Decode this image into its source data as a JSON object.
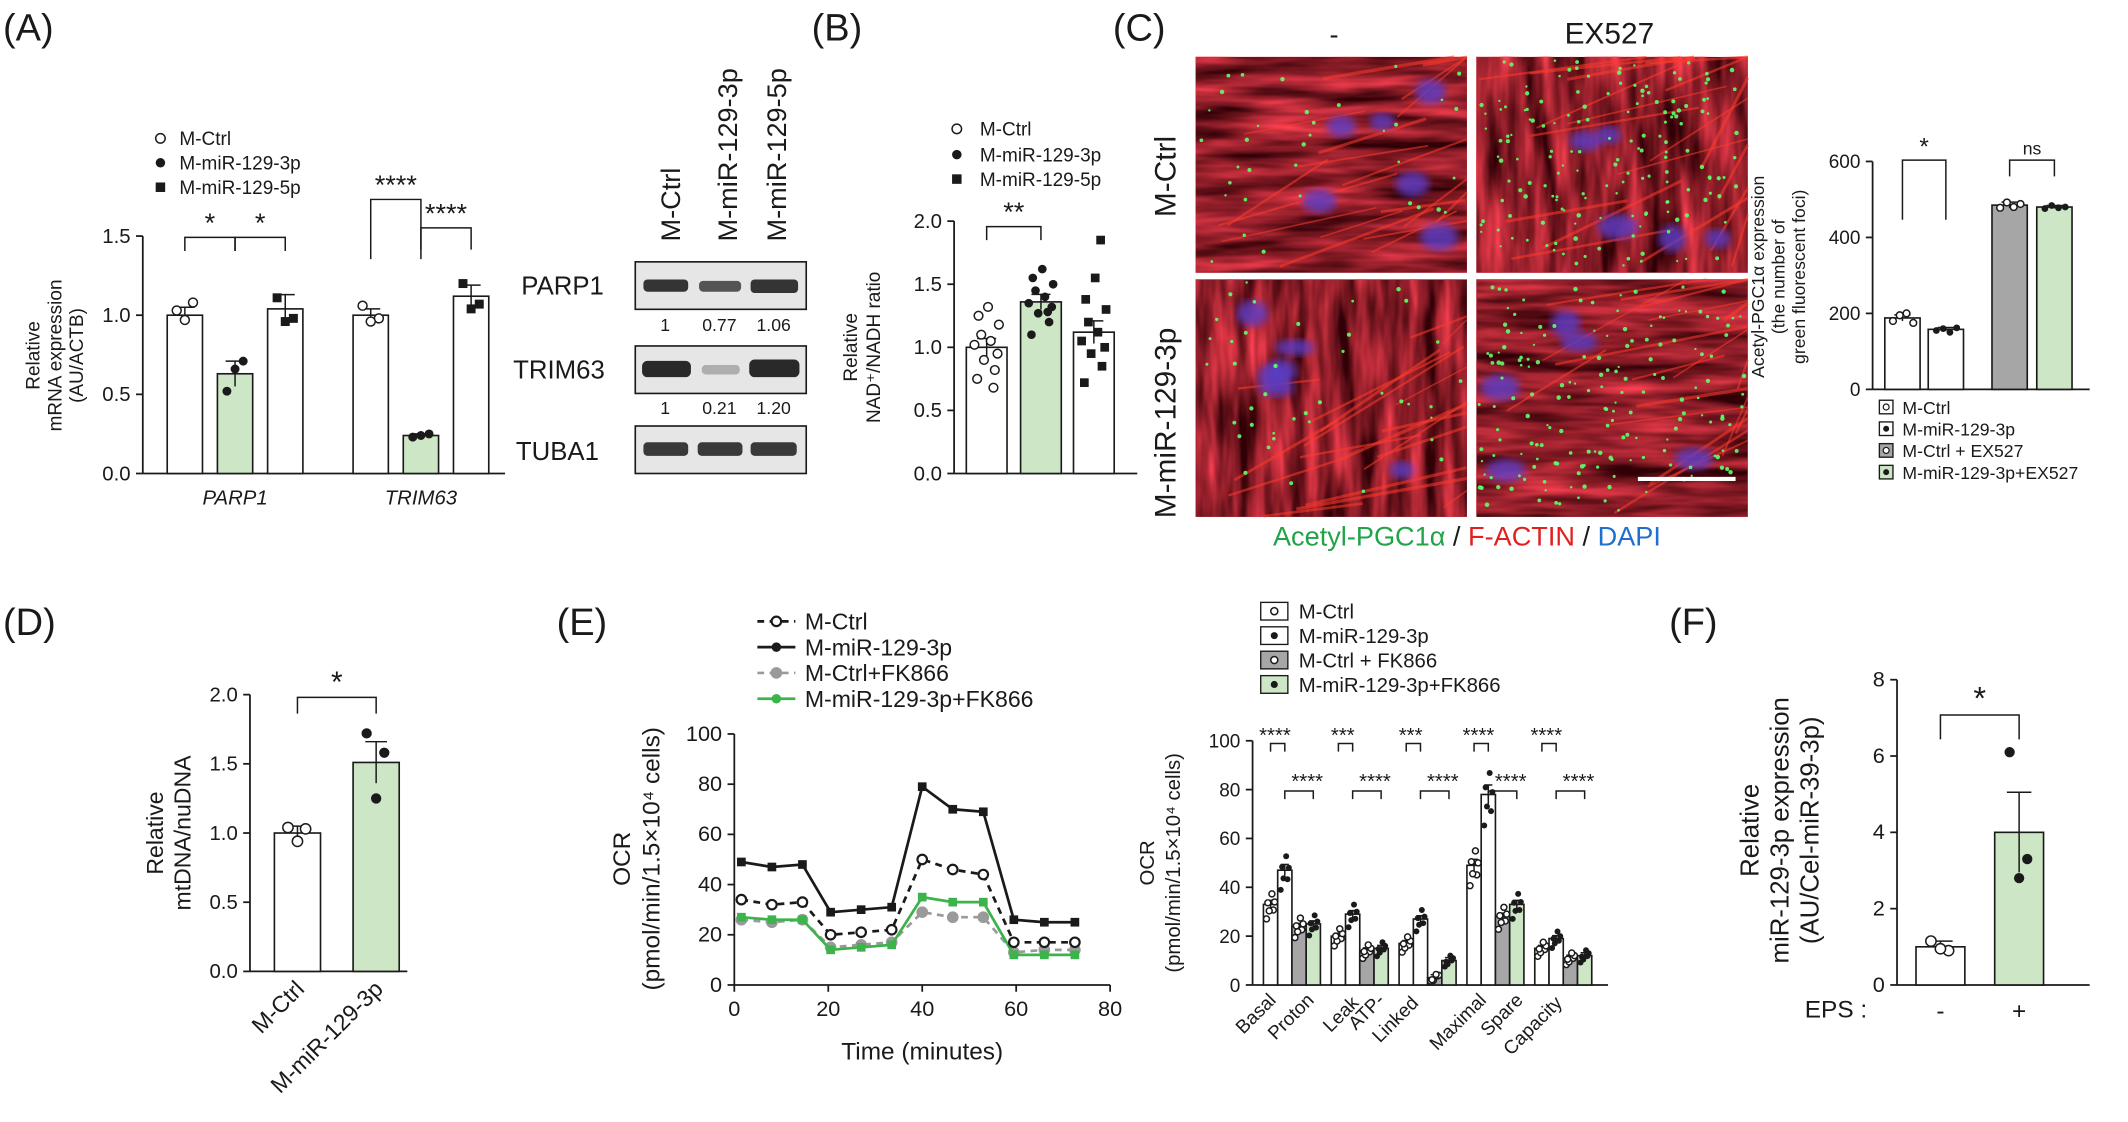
{
  "colors": {
    "bar_ctrl": "#ffffff",
    "bar_green": "#cde7c6",
    "bar_grey": "#a6a6a6",
    "line_green": "#3cb44b",
    "line_grey": "#9a9a9a",
    "line_black": "#1a1a1a",
    "acetyl_green": "#22a348",
    "factin_red": "#e32020",
    "dapi_blue": "#1f6fd1"
  },
  "panels": {
    "A": {
      "label": "(A)",
      "legend": [
        "M-Ctrl",
        "M-miR-129-3p",
        "M-miR-129-5p"
      ],
      "western": {
        "columns": [
          "M-Ctrl",
          "M-miR-129-3p",
          "M-miR-129-5p"
        ],
        "rows": [
          {
            "name": "PARP1",
            "quant": [
              "1",
              "0.77",
              "1.06"
            ]
          },
          {
            "name": "TRIM63",
            "quant": [
              "1",
              "0.21",
              "1.20"
            ]
          },
          {
            "name": "TUBA1",
            "quant": []
          }
        ]
      }
    },
    "B": {
      "label": "(B)",
      "legend": [
        "M-Ctrl",
        "M-miR-129-3p",
        "M-miR-129-5p"
      ]
    },
    "C": {
      "label": "(C)",
      "col_labels": [
        "-",
        "EX527"
      ],
      "row_labels": [
        "M-Ctrl",
        "M-miR-129-3p"
      ],
      "stain": {
        "green": "Acetyl-PGC1α",
        "sep": " / ",
        "red": "F-ACTIN",
        "blue": "DAPI"
      },
      "legend": [
        "M-Ctrl",
        "M-miR-129-3p",
        "M-Ctrl + EX527",
        "M-miR-129-3p+EX527"
      ]
    },
    "D": {
      "label": "(D)"
    },
    "E": {
      "label": "(E)",
      "legend_line": [
        "M-Ctrl",
        "M-miR-129-3p",
        "M-Ctrl+FK866",
        "M-miR-129-3p+FK866"
      ],
      "legend_bar": [
        "M-Ctrl",
        "M-miR-129-3p",
        "M-Ctrl + FK866",
        "M-miR-129-3p+FK866"
      ]
    },
    "F": {
      "label": "(F)",
      "eps_label": "EPS :"
    }
  },
  "chart_data": [
    {
      "id": "A-mrna",
      "type": "bar",
      "ylabel": [
        "Relative",
        "mRNA expression",
        "(AU/ACTB)"
      ],
      "ylim": [
        0,
        1.5
      ],
      "yticks": [
        "0.0",
        "0.5",
        "1.0",
        "1.5"
      ],
      "groups": [
        "PARP1",
        "TRIM63"
      ],
      "series": [
        {
          "name": "M-Ctrl",
          "values": [
            1.0,
            1.0
          ],
          "err": [
            0.05,
            0.04
          ]
        },
        {
          "name": "M-miR-129-3p",
          "values": [
            0.63,
            0.24
          ],
          "err": [
            0.08,
            0.01
          ]
        },
        {
          "name": "M-miR-129-5p",
          "values": [
            1.04,
            1.12
          ],
          "err": [
            0.09,
            0.07
          ]
        }
      ],
      "points": [
        [
          [
            1.03,
            1.08,
            0.97
          ],
          [
            1.06,
            0.98,
            0.96
          ]
        ],
        [
          [
            0.52,
            0.71,
            0.66
          ],
          [
            0.23,
            0.25,
            0.24
          ]
        ],
        [
          [
            1.11,
            0.98,
            0.96
          ],
          [
            1.2,
            1.07,
            1.04
          ]
        ]
      ],
      "sig": [
        "*",
        "*",
        "****",
        "****"
      ]
    },
    {
      "id": "B-nad",
      "type": "bar",
      "ylabel": [
        "Relative",
        "NAD⁺/NADH ratio"
      ],
      "ylim": [
        0,
        2.0
      ],
      "yticks": [
        "0.0",
        "0.5",
        "1.0",
        "1.5",
        "2.0"
      ],
      "categories": [
        "M-Ctrl",
        "M-miR-129-3p",
        "M-miR-129-5p"
      ],
      "values": [
        1.0,
        1.36,
        1.12
      ],
      "err": [
        0.07,
        0.06,
        0.09
      ],
      "points": [
        [
          0.75,
          0.82,
          0.9,
          0.95,
          1.02,
          1.05,
          1.1,
          1.18,
          1.25,
          1.32,
          0.68
        ],
        [
          1.1,
          1.2,
          1.27,
          1.32,
          1.35,
          1.4,
          1.45,
          1.5,
          1.55,
          1.62,
          1.28
        ],
        [
          0.72,
          0.85,
          0.95,
          1.0,
          1.05,
          1.12,
          1.2,
          1.3,
          1.38,
          1.55,
          1.85
        ]
      ],
      "sig": [
        "**"
      ]
    },
    {
      "id": "C-foci",
      "type": "bar",
      "ylabel": [
        "Acetyl-PGC1α expression",
        "(the number of",
        "green fluorescent foci)"
      ],
      "ylim": [
        0,
        600
      ],
      "yticks": [
        "0",
        "200",
        "400",
        "600"
      ],
      "categories": [
        "M-Ctrl",
        "M-miR-129-3p",
        "M-Ctrl + EX527",
        "M-miR-129-3p+EX527"
      ],
      "values": [
        188,
        158,
        485,
        480
      ],
      "err": [
        8,
        5,
        8,
        4
      ],
      "points": [
        [
          180,
          195,
          200,
          175
        ],
        [
          155,
          160,
          150,
          162
        ],
        [
          478,
          492,
          480,
          488
        ],
        [
          476,
          484,
          478,
          480
        ]
      ],
      "sig": [
        "*",
        "ns"
      ]
    },
    {
      "id": "D-mtdna",
      "type": "bar",
      "ylabel": [
        "Relative",
        "mtDNA/nuDNA"
      ],
      "ylim": [
        0,
        2.0
      ],
      "yticks": [
        "0.0",
        "0.5",
        "1.0",
        "1.5",
        "2.0"
      ],
      "categories": [
        "M-Ctrl",
        "M-miR-129-3p"
      ],
      "values": [
        1.0,
        1.51
      ],
      "err": [
        0.05,
        0.15
      ],
      "points": [
        [
          1.04,
          1.03,
          0.94
        ],
        [
          1.72,
          1.58,
          1.25
        ]
      ],
      "sig": [
        "*"
      ]
    },
    {
      "id": "E-ocr-time",
      "type": "line",
      "xlabel": "Time (minutes)",
      "ylabel": [
        "OCR",
        "(pmol/min/1.5×10⁴ cells)"
      ],
      "xlim": [
        0,
        80
      ],
      "ylim": [
        0,
        100
      ],
      "xticks": [
        "0",
        "20",
        "40",
        "60",
        "80"
      ],
      "yticks": [
        "0",
        "20",
        "40",
        "60",
        "80",
        "100"
      ],
      "x": [
        1.5,
        8,
        14.5,
        20.5,
        27,
        33.5,
        40,
        46.5,
        53,
        59.5,
        66,
        72.5
      ],
      "series": [
        {
          "name": "M-Ctrl",
          "values": [
            34,
            32,
            33,
            20,
            21,
            22,
            50,
            46,
            44,
            17,
            17,
            17
          ]
        },
        {
          "name": "M-miR-129-3p",
          "values": [
            49,
            47,
            48,
            29,
            30,
            31,
            79,
            70,
            69,
            26,
            25,
            25
          ]
        },
        {
          "name": "M-Ctrl+FK866",
          "values": [
            26,
            25,
            26,
            15,
            16,
            17,
            29,
            27,
            27,
            13,
            14,
            14
          ]
        },
        {
          "name": "M-miR-129-3p+FK866",
          "values": [
            27,
            26,
            26,
            14,
            15,
            16,
            35,
            33,
            33,
            12,
            12,
            12
          ]
        }
      ]
    },
    {
      "id": "E-ocr-bars",
      "type": "bar",
      "ylabel": [
        "OCR",
        "(pmol/min/1.5×10⁴ cells)"
      ],
      "ylim": [
        0,
        100
      ],
      "yticks": [
        "0",
        "20",
        "40",
        "60",
        "80",
        "100"
      ],
      "categories": [
        "Basal",
        "Proton Leak",
        "ATP-Linked",
        "Maximal",
        "Spare Capacity"
      ],
      "series": [
        {
          "name": "M-Ctrl",
          "values": [
            33,
            20,
            17,
            49,
            15
          ]
        },
        {
          "name": "M-miR-129-3p",
          "values": [
            47,
            29,
            27,
            78,
            19
          ]
        },
        {
          "name": "M-Ctrl + FK866",
          "values": [
            24,
            14,
            3,
            28,
            11
          ]
        },
        {
          "name": "M-miR-129-3p+FK866",
          "values": [
            25,
            15,
            10,
            33,
            12
          ]
        }
      ],
      "sig": [
        [
          "****",
          "****"
        ],
        [
          "***",
          "****"
        ],
        [
          "***",
          "****"
        ],
        [
          "****",
          "****"
        ],
        [
          "****",
          "****"
        ]
      ]
    },
    {
      "id": "F-mir",
      "type": "bar",
      "ylabel": [
        "Relative",
        "miR-129-3p expression",
        "(AU/Cel-miR-39-3p)"
      ],
      "ylim": [
        0,
        8
      ],
      "yticks": [
        "0",
        "2",
        "4",
        "6",
        "8"
      ],
      "categories": [
        "-",
        "+"
      ],
      "values": [
        1.0,
        4.0
      ],
      "err": [
        0.15,
        1.05
      ],
      "points": [
        [
          1.15,
          0.9,
          0.95
        ],
        [
          6.1,
          3.3,
          2.8
        ]
      ],
      "sig": [
        "*"
      ]
    }
  ]
}
